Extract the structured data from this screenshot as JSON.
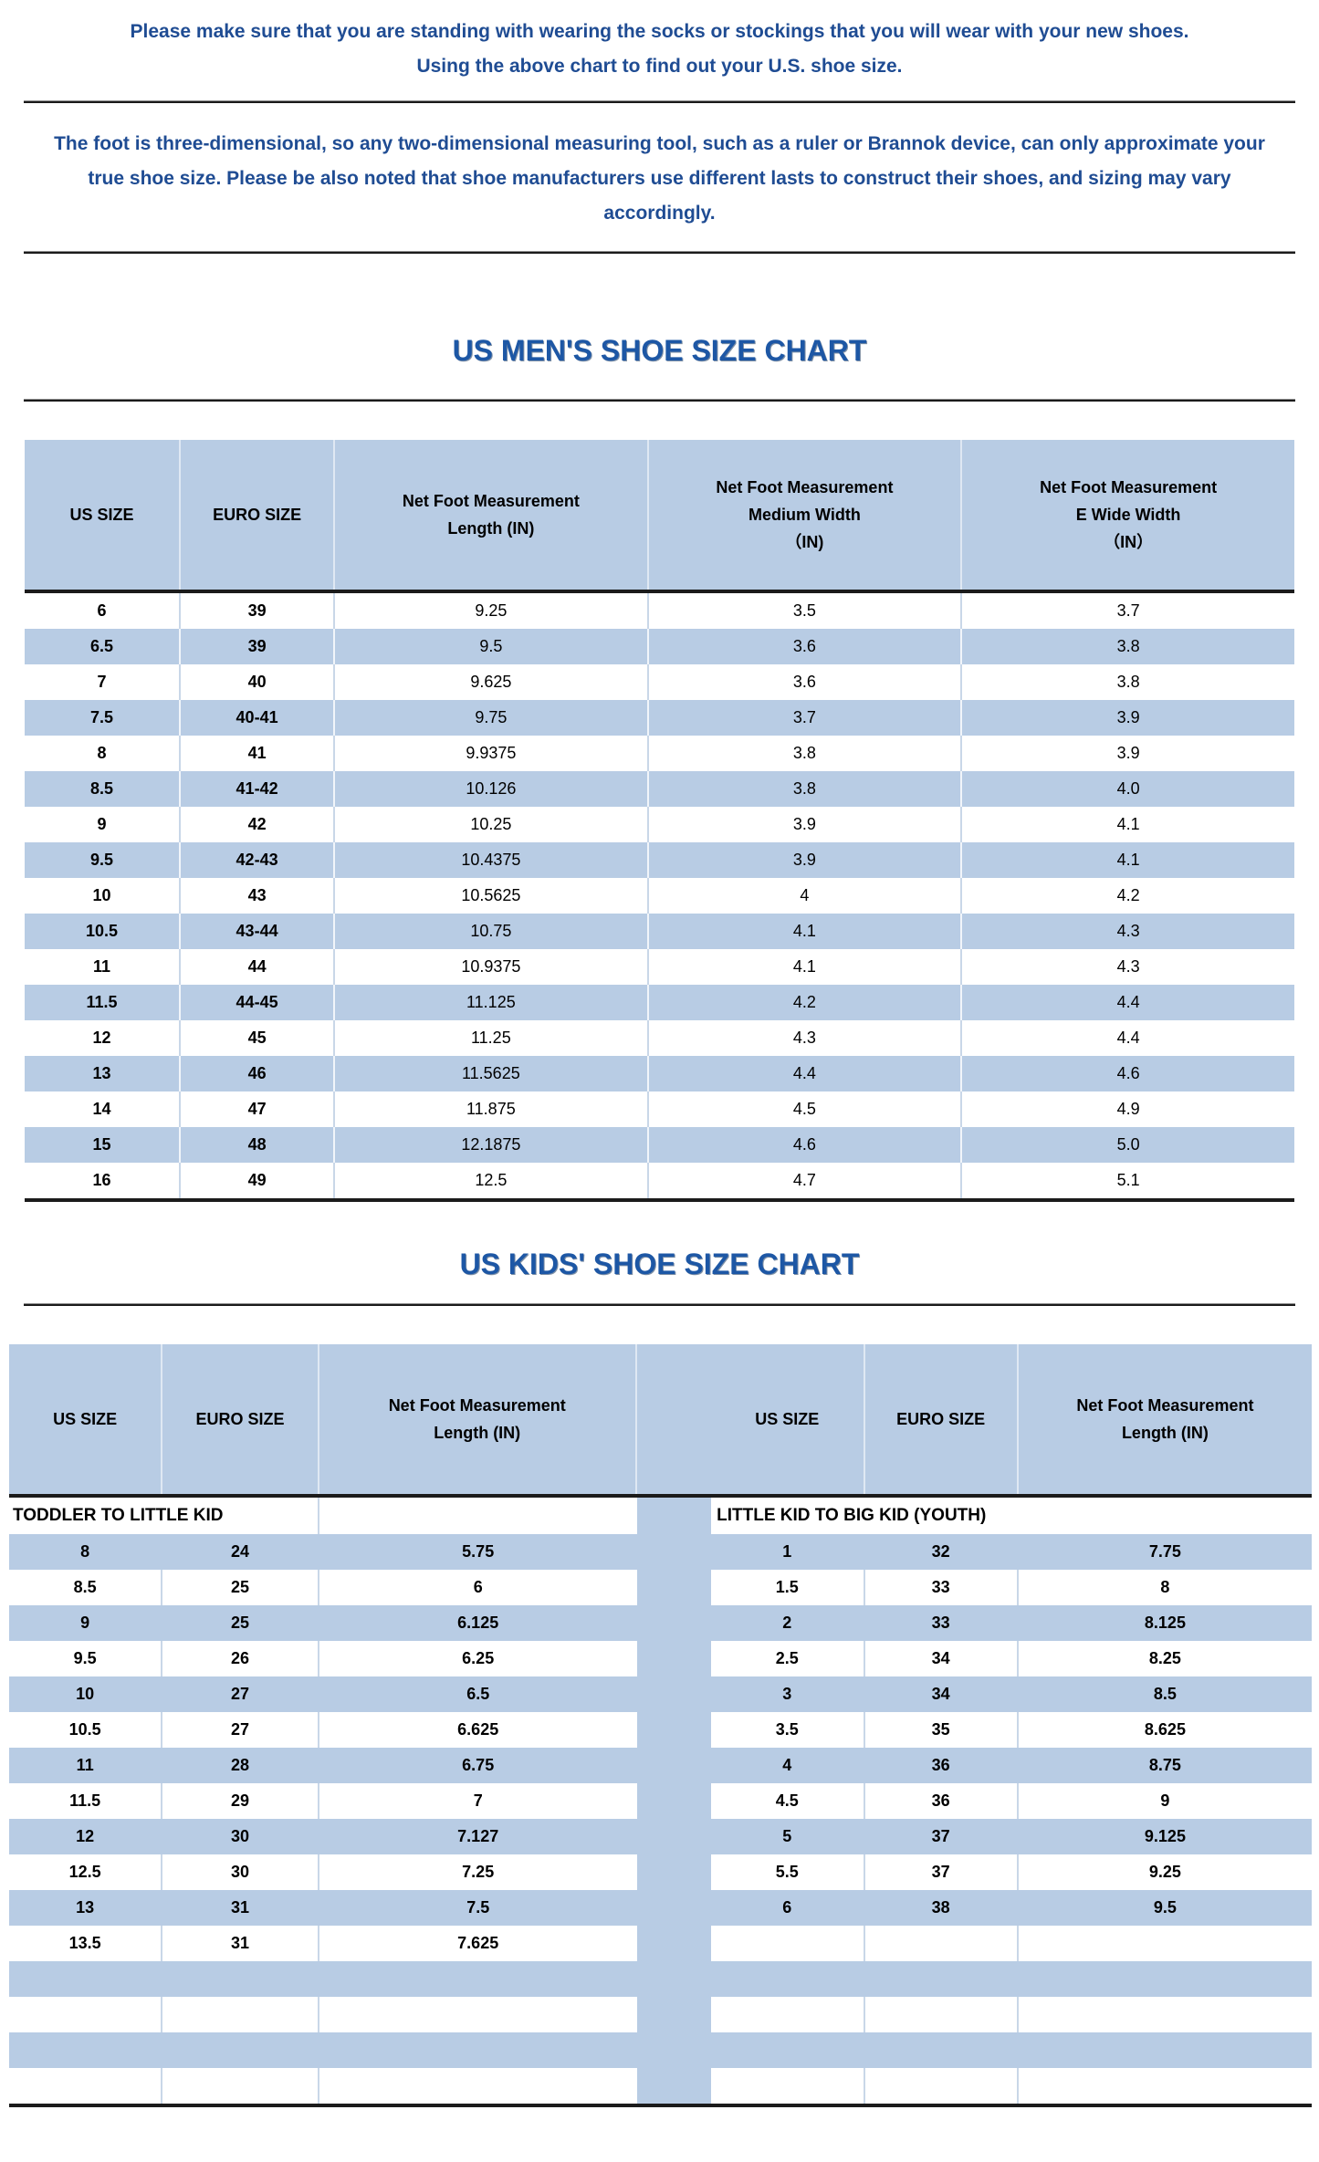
{
  "intro": {
    "line1": "Please make sure that you are standing with wearing the socks or stockings that you will wear with your new shoes.",
    "line2": "Using the above chart to find out your U.S. shoe size."
  },
  "note": {
    "text": "The foot is three-dimensional, so any two-dimensional measuring tool, such as a ruler or Brannok device, can only approximate your true shoe size. Please be also noted that shoe manufacturers use different lasts to construct their shoes, and sizing may vary accordingly."
  },
  "mens_chart": {
    "title": "US MEN'S SHOE SIZE CHART",
    "headers": [
      "US SIZE",
      "EURO SIZE",
      "Net Foot Measurement\nLength (IN)",
      "Net Foot Measurement\nMedium Width\n（IN)",
      "Net Foot Measurement\nE Wide Width\n（IN）"
    ],
    "rows": [
      [
        "6",
        "39",
        "9.25",
        "3.5",
        "3.7"
      ],
      [
        "6.5",
        "39",
        "9.5",
        "3.6",
        "3.8"
      ],
      [
        "7",
        "40",
        "9.625",
        "3.6",
        "3.8"
      ],
      [
        "7.5",
        "40-41",
        "9.75",
        "3.7",
        "3.9"
      ],
      [
        "8",
        "41",
        "9.9375",
        "3.8",
        "3.9"
      ],
      [
        "8.5",
        "41-42",
        "10.126",
        "3.8",
        "4.0"
      ],
      [
        "9",
        "42",
        "10.25",
        "3.9",
        "4.1"
      ],
      [
        "9.5",
        "42-43",
        "10.4375",
        "3.9",
        "4.1"
      ],
      [
        "10",
        "43",
        "10.5625",
        "4",
        "4.2"
      ],
      [
        "10.5",
        "43-44",
        "10.75",
        "4.1",
        "4.3"
      ],
      [
        "11",
        "44",
        "10.9375",
        "4.1",
        "4.3"
      ],
      [
        "11.5",
        "44-45",
        "11.125",
        "4.2",
        "4.4"
      ],
      [
        "12",
        "45",
        "11.25",
        "4.3",
        "4.4"
      ],
      [
        "13",
        "46",
        "11.5625",
        "4.4",
        "4.6"
      ],
      [
        "14",
        "47",
        "11.875",
        "4.5",
        "4.9"
      ],
      [
        "15",
        "48",
        "12.1875",
        "4.6",
        "5.0"
      ],
      [
        "16",
        "49",
        "12.5",
        "4.7",
        "5.1"
      ]
    ]
  },
  "kids_chart": {
    "title": "US KIDS' SHOE SIZE CHART",
    "headers": [
      "US SIZE",
      "EURO SIZE",
      "Net Foot Measurement\nLength (IN)",
      "US SIZE",
      "EURO SIZE",
      "Net Foot Measurement\nLength (IN)"
    ],
    "section_left": "TODDLER TO LITTLE KID",
    "section_right": "LITTLE KID TO BIG KID (YOUTH)",
    "rows": [
      [
        "8",
        "24",
        "5.75",
        "1",
        "32",
        "7.75"
      ],
      [
        "8.5",
        "25",
        "6",
        "1.5",
        "33",
        "8"
      ],
      [
        "9",
        "25",
        "6.125",
        "2",
        "33",
        "8.125"
      ],
      [
        "9.5",
        "26",
        "6.25",
        "2.5",
        "34",
        "8.25"
      ],
      [
        "10",
        "27",
        "6.5",
        "3",
        "34",
        "8.5"
      ],
      [
        "10.5",
        "27",
        "6.625",
        "3.5",
        "35",
        "8.625"
      ],
      [
        "11",
        "28",
        "6.75",
        "4",
        "36",
        "8.75"
      ],
      [
        "11.5",
        "29",
        "7",
        "4.5",
        "36",
        "9"
      ],
      [
        "12",
        "30",
        "7.127",
        "5",
        "37",
        "9.125"
      ],
      [
        "12.5",
        "30",
        "7.25",
        "5.5",
        "37",
        "9.25"
      ],
      [
        "13",
        "31",
        "7.5",
        "6",
        "38",
        "9.5"
      ],
      [
        "13.5",
        "31",
        "7.625",
        "",
        "",
        ""
      ],
      [
        "",
        "",
        "",
        "",
        "",
        ""
      ],
      [
        "",
        "",
        "",
        "",
        "",
        ""
      ],
      [
        "",
        "",
        "",
        "",
        "",
        ""
      ],
      [
        "",
        "",
        "",
        "",
        "",
        ""
      ]
    ]
  },
  "colors": {
    "band_blue": "#b8cce4",
    "grid_line": "#c9d7e8",
    "text_navy": "#1f4c93",
    "title_blue": "#1d57a5",
    "dark_line": "#1b1b1b"
  }
}
